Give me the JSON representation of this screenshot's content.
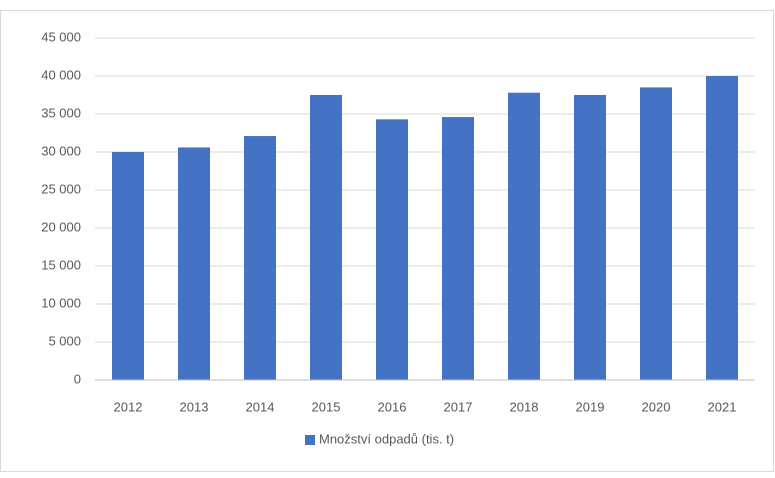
{
  "chart_data": {
    "type": "bar",
    "categories": [
      "2012",
      "2013",
      "2014",
      "2015",
      "2016",
      "2017",
      "2018",
      "2019",
      "2020",
      "2021"
    ],
    "series": [
      {
        "name": "Množství odpadů (tis. t)",
        "color": "#4472c4",
        "values": [
          30000,
          30600,
          32100,
          37500,
          34300,
          34600,
          37800,
          37500,
          38500,
          40000
        ]
      }
    ],
    "ylim": [
      0,
      45000
    ],
    "yticks": [
      0,
      {
        "value": 5000,
        "label": "5 000"
      },
      {
        "value": 10000,
        "label": "10 000"
      },
      {
        "value": 15000,
        "label": "15 000"
      },
      {
        "value": 20000,
        "label": "20 000"
      },
      {
        "value": 25000,
        "label": "25 000"
      },
      {
        "value": 30000,
        "label": "30 000"
      },
      {
        "value": 35000,
        "label": "35 000"
      },
      {
        "value": 40000,
        "label": "40 000"
      },
      {
        "value": 45000,
        "label": "45 000"
      }
    ],
    "grid": true,
    "legend": "bottom"
  }
}
